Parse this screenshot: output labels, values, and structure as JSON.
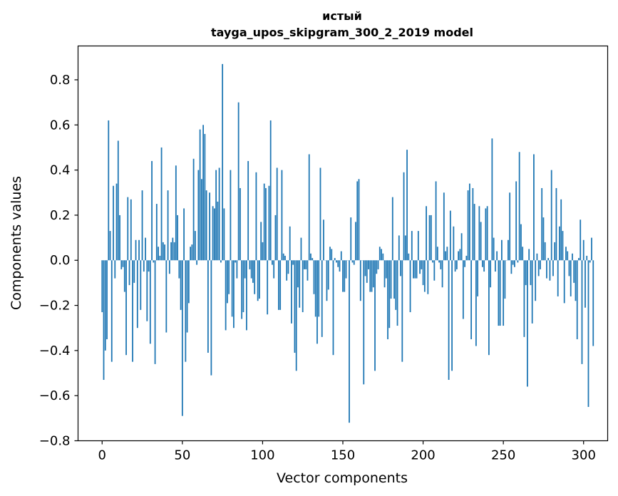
{
  "chart_data": {
    "type": "bar",
    "title_line1": "истый",
    "title_line2": "tayga_upos_skipgram_300_2_2019 model",
    "xlabel": "Vector components",
    "ylabel": "Components values",
    "xlim": [
      -15,
      315
    ],
    "ylim": [
      -0.8,
      0.95
    ],
    "x_ticks": [
      0,
      50,
      100,
      150,
      200,
      250,
      300
    ],
    "x_tick_labels": [
      "0",
      "50",
      "100",
      "150",
      "200",
      "250",
      "300"
    ],
    "y_ticks": [
      -0.8,
      -0.6,
      -0.4,
      -0.2,
      0.0,
      0.2,
      0.4,
      0.6,
      0.8
    ],
    "y_tick_labels": [
      "−0.8",
      "−0.6",
      "−0.4",
      "−0.2",
      "0.0",
      "0.2",
      "0.4",
      "0.6",
      "0.8"
    ],
    "bar_color": "#1f77b4",
    "values": [
      -0.23,
      -0.53,
      -0.4,
      -0.35,
      0.62,
      0.13,
      -0.45,
      0.33,
      -0.08,
      0.34,
      0.53,
      0.2,
      -0.04,
      -0.03,
      -0.14,
      -0.42,
      0.28,
      -0.11,
      0.27,
      -0.45,
      -0.1,
      0.09,
      -0.3,
      0.09,
      -0.22,
      0.31,
      -0.05,
      0.1,
      -0.27,
      -0.05,
      -0.37,
      0.44,
      -0.01,
      -0.46,
      0.25,
      0.06,
      0.02,
      0.5,
      0.08,
      0.07,
      -0.32,
      0.31,
      -0.06,
      0.08,
      0.1,
      0.08,
      0.42,
      0.2,
      -0.08,
      -0.22,
      -0.69,
      0.23,
      -0.45,
      -0.32,
      -0.19,
      0.06,
      0.07,
      0.45,
      0.13,
      -0.02,
      0.4,
      0.58,
      0.36,
      0.6,
      0.56,
      0.31,
      -0.41,
      0.3,
      -0.51,
      0.24,
      0.23,
      0.4,
      0.26,
      0.41,
      -0.01,
      0.87,
      0.23,
      -0.31,
      -0.19,
      -0.15,
      0.4,
      -0.25,
      -0.3,
      -0.01,
      -0.08,
      0.7,
      0.32,
      -0.26,
      -0.23,
      -0.08,
      -0.31,
      0.44,
      -0.04,
      -0.08,
      -0.1,
      -0.15,
      0.39,
      -0.18,
      -0.17,
      0.17,
      0.08,
      0.34,
      0.32,
      -0.24,
      0.33,
      0.62,
      -0.02,
      -0.08,
      0.2,
      0.41,
      -0.22,
      -0.22,
      0.4,
      0.03,
      0.02,
      -0.09,
      -0.06,
      0.15,
      -0.28,
      -0.02,
      -0.41,
      -0.49,
      -0.12,
      -0.21,
      0.1,
      -0.23,
      -0.04,
      -0.04,
      -0.09,
      0.47,
      0.03,
      0.01,
      -0.15,
      -0.25,
      -0.37,
      -0.25,
      0.41,
      -0.34,
      0.18,
      0.0,
      -0.18,
      -0.13,
      0.06,
      0.05,
      -0.42,
      0.01,
      -0.01,
      -0.03,
      -0.05,
      0.04,
      -0.14,
      -0.14,
      -0.08,
      0.0,
      -0.72,
      0.19,
      -0.01,
      -0.02,
      0.17,
      0.35,
      0.36,
      -0.18,
      0.0,
      -0.55,
      -0.07,
      -0.1,
      -0.04,
      -0.14,
      -0.14,
      -0.12,
      -0.49,
      -0.06,
      -0.04,
      0.06,
      0.05,
      0.03,
      -0.12,
      -0.08,
      -0.35,
      -0.3,
      -0.17,
      0.28,
      -0.17,
      -0.22,
      -0.29,
      0.11,
      -0.07,
      -0.45,
      0.39,
      0.11,
      0.49,
      0.03,
      -0.23,
      0.13,
      -0.08,
      -0.08,
      -0.08,
      0.13,
      -0.06,
      -0.04,
      -0.11,
      -0.14,
      0.24,
      -0.15,
      0.2,
      0.2,
      -0.01,
      -0.09,
      0.35,
      0.06,
      -0.01,
      -0.04,
      -0.12,
      0.3,
      0.04,
      0.06,
      -0.53,
      0.22,
      -0.49,
      0.15,
      -0.05,
      -0.04,
      0.04,
      0.05,
      0.12,
      -0.26,
      -0.03,
      0.02,
      0.31,
      0.34,
      -0.35,
      0.32,
      0.25,
      -0.38,
      -0.16,
      0.24,
      0.17,
      -0.03,
      -0.05,
      0.23,
      0.24,
      -0.42,
      -0.12,
      0.54,
      0.1,
      -0.05,
      0.04,
      -0.29,
      -0.29,
      0.09,
      -0.29,
      -0.17,
      0.0,
      0.09,
      0.3,
      -0.06,
      -0.02,
      -0.03,
      0.35,
      -0.01,
      0.48,
      0.16,
      0.06,
      -0.34,
      -0.11,
      -0.56,
      0.05,
      -0.11,
      -0.28,
      0.47,
      -0.18,
      0.03,
      -0.07,
      -0.04,
      0.32,
      0.19,
      0.08,
      -0.08,
      0.01,
      -0.09,
      0.4,
      -0.07,
      0.08,
      0.32,
      -0.16,
      0.15,
      0.27,
      0.13,
      -0.19,
      0.06,
      0.04,
      -0.07,
      -0.16,
      0.03,
      -0.1,
      -0.18,
      -0.35,
      0.01,
      0.18,
      -0.46,
      0.09,
      -0.21,
      0.02,
      -0.65,
      -0.01,
      0.1,
      -0.38
    ]
  }
}
